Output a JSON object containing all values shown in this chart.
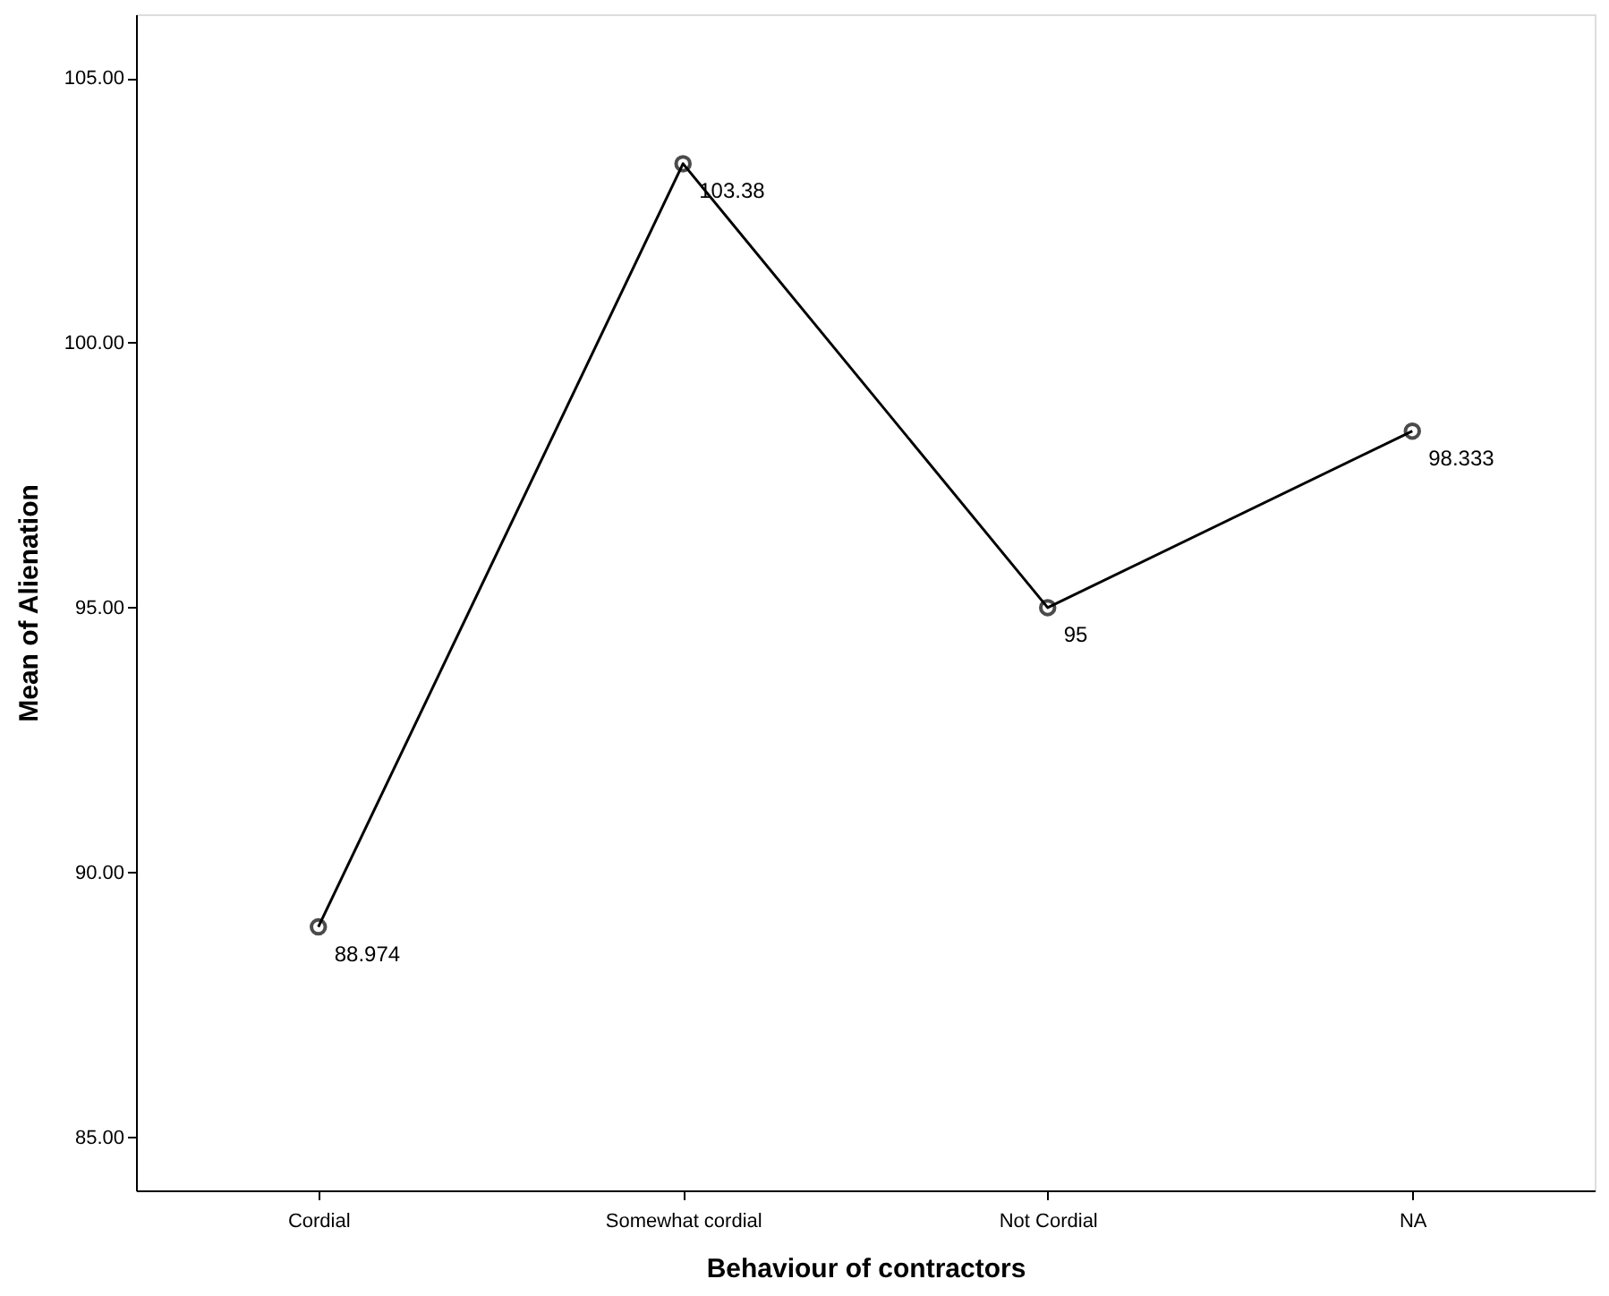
{
  "chart_data": {
    "type": "line",
    "xlabel": "Behaviour of contractors",
    "ylabel": "Mean of Alienation",
    "categories": [
      "Cordial",
      "Somewhat cordial",
      "Not Cordial",
      "NA"
    ],
    "series": [
      {
        "color": "#000000",
        "values": [
          88.974,
          103.38,
          95,
          98.333
        ]
      }
    ],
    "ylim": [
      84,
      106.2
    ],
    "yticks": [
      {
        "value": 85,
        "label": "85.00"
      },
      {
        "value": 90,
        "label": "90.00"
      },
      {
        "value": 95,
        "label": "95.00"
      },
      {
        "value": 100,
        "label": "100.00"
      },
      {
        "value": 105,
        "label": "105.00"
      }
    ],
    "data_labels": true,
    "marker": "circle",
    "line_style": "solid",
    "grid": false
  }
}
